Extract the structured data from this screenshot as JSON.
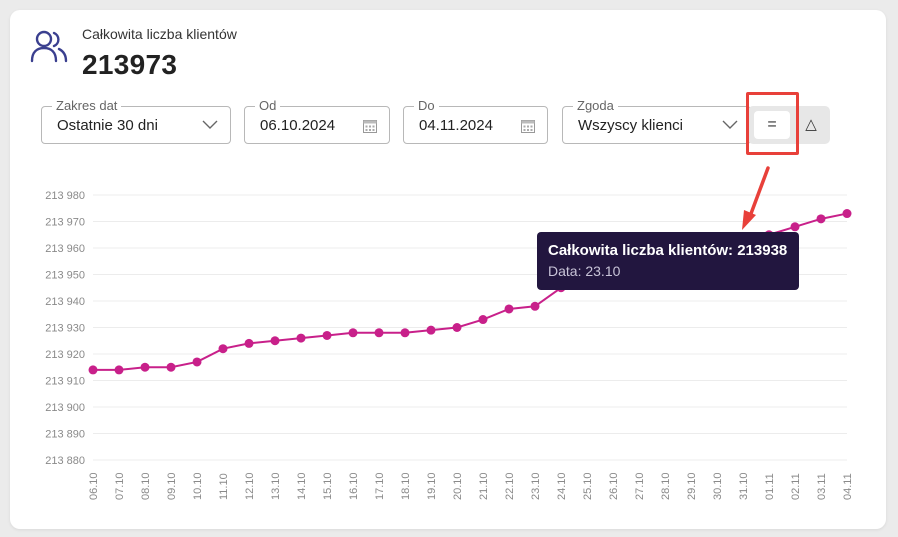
{
  "header": {
    "title": "Całkowita liczba klientów",
    "value": "213973",
    "icon": "users-icon"
  },
  "filters": {
    "date_range": {
      "label": "Zakres dat",
      "value": "Ostatnie 30 dni"
    },
    "from": {
      "label": "Od",
      "value": "06.10.2024"
    },
    "to": {
      "label": "Do",
      "value": "04.11.2024"
    },
    "consent": {
      "label": "Zgoda",
      "value": "Wszyscy klienci"
    }
  },
  "toggle": {
    "equal_label": "=",
    "delta_label": "△"
  },
  "colors": {
    "line": "#c8208a",
    "tooltip_bg": "#22163f",
    "highlight": "#e8403a"
  },
  "tooltip": {
    "line1": "Całkowita liczba klientów: 213938",
    "line2": "Data: 23.10"
  },
  "chart_data": {
    "type": "line",
    "x": [
      "06.10",
      "07.10",
      "08.10",
      "09.10",
      "10.10",
      "11.10",
      "12.10",
      "13.10",
      "14.10",
      "15.10",
      "16.10",
      "17.10",
      "18.10",
      "19.10",
      "20.10",
      "21.10",
      "22.10",
      "23.10",
      "24.10",
      "25.10",
      "26.10",
      "27.10",
      "28.10",
      "29.10",
      "30.10",
      "31.10",
      "01.11",
      "02.11",
      "03.11",
      "04.11"
    ],
    "series": [
      {
        "values": [
          213914,
          213914,
          213915,
          213915,
          213917,
          213922,
          213924,
          213925,
          213926,
          213927,
          213928,
          213928,
          213928,
          213929,
          213930,
          213933,
          213937,
          213938,
          213945,
          213948,
          213950,
          213952,
          213955,
          213958,
          213962,
          213962,
          213965,
          213968,
          213971,
          213973
        ]
      }
    ],
    "yticks": [
      "213 880",
      "213 890",
      "213 900",
      "213 910",
      "213 920",
      "213 930",
      "213 940",
      "213 950",
      "213 960",
      "213 970",
      "213 980"
    ],
    "ylim": [
      213880,
      213980
    ],
    "grid": true
  }
}
